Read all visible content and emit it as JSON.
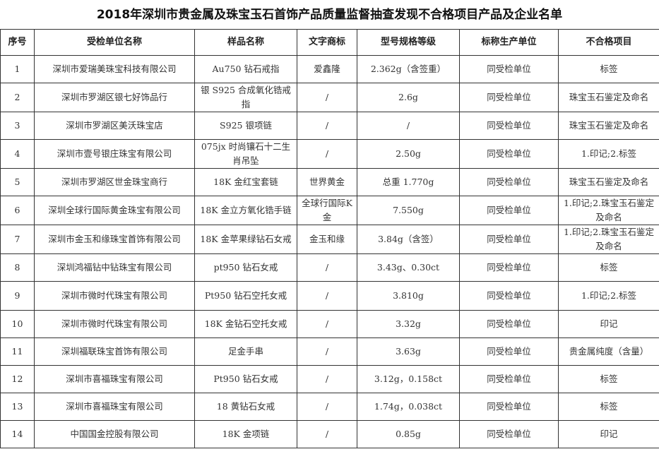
{
  "title": "2018年深圳市贵金属及珠宝玉石首饰产品质量监督抽查发现不合格项目产品及企业名单",
  "headers": [
    "序号",
    "受检单位名称",
    "样品名称",
    "文字商标",
    "型号规格等级",
    "标称生产单位",
    "不合格项目"
  ],
  "rows": [
    [
      "1",
      "深圳市爱瑞美珠宝科技有限公司",
      "Au750 钻石戒指",
      "爱鑫隆",
      "2.362g（含签重）",
      "同受检单位",
      "标签"
    ],
    [
      "2",
      "深圳市罗湖区银七好饰品行",
      "银 S925 合成氧化锆戒指",
      "/",
      "2.6g",
      "同受检单位",
      "珠宝玉石鉴定及命名"
    ],
    [
      "3",
      "深圳市罗湖区美沃珠宝店",
      "S925 银项链",
      "/",
      "/",
      "同受检单位",
      "珠宝玉石鉴定及命名"
    ],
    [
      "4",
      "深圳市壹号银庄珠宝有限公司",
      "075jx 时尚镶石十二生肖吊坠",
      "/",
      "2.50g",
      "同受检单位",
      "1.印记;2.标签"
    ],
    [
      "5",
      "深圳市罗湖区世金珠宝商行",
      "18K 金红宝套链",
      "世界黄金",
      "总重 1.770g",
      "同受检单位",
      "珠宝玉石鉴定及命名"
    ],
    [
      "6",
      "深圳全球行国际黄金珠宝有限公司",
      "18K 金立方氧化锆手链",
      "全球行国际K金",
      "7.550g",
      "同受检单位",
      "1.印记;2.珠宝玉石鉴定及命名"
    ],
    [
      "7",
      "深圳市金玉和缘珠宝首饰有限公司",
      "18K 金苹果绿钻石女戒",
      "金玉和缘",
      "3.84g（含签）",
      "同受检单位",
      "1.印记;2.珠宝玉石鉴定及命名"
    ],
    [
      "8",
      "深圳鸿福钻中钻珠宝有限公司",
      "pt950 钻石女戒",
      "/",
      "3.43g、0.30ct",
      "同受检单位",
      "标签"
    ],
    [
      "9",
      "深圳市微时代珠宝有限公司",
      "Pt950 钻石空托女戒",
      "/",
      "3.810g",
      "同受检单位",
      "1.印记;2.标签"
    ],
    [
      "10",
      "深圳市微时代珠宝有限公司",
      "18K 金钻石空托女戒",
      "/",
      "3.32g",
      "同受检单位",
      "印记"
    ],
    [
      "11",
      "深圳福联珠宝首饰有限公司",
      "足金手串",
      "/",
      "3.63g",
      "同受检单位",
      "贵金属纯度（含量）"
    ],
    [
      "12",
      "深圳市喜福珠宝有限公司",
      "Pt950 钻石女戒",
      "/",
      "3.12g，0.158ct",
      "同受检单位",
      "标签"
    ],
    [
      "13",
      "深圳市喜福珠宝有限公司",
      "18 黄钻石女戒",
      "/",
      "1.74g，0.038ct",
      "同受检单位",
      "标签"
    ],
    [
      "14",
      "中国国金控股有限公司",
      "18K 金项链",
      "/",
      "0.85g",
      "同受检单位",
      "印记"
    ]
  ]
}
